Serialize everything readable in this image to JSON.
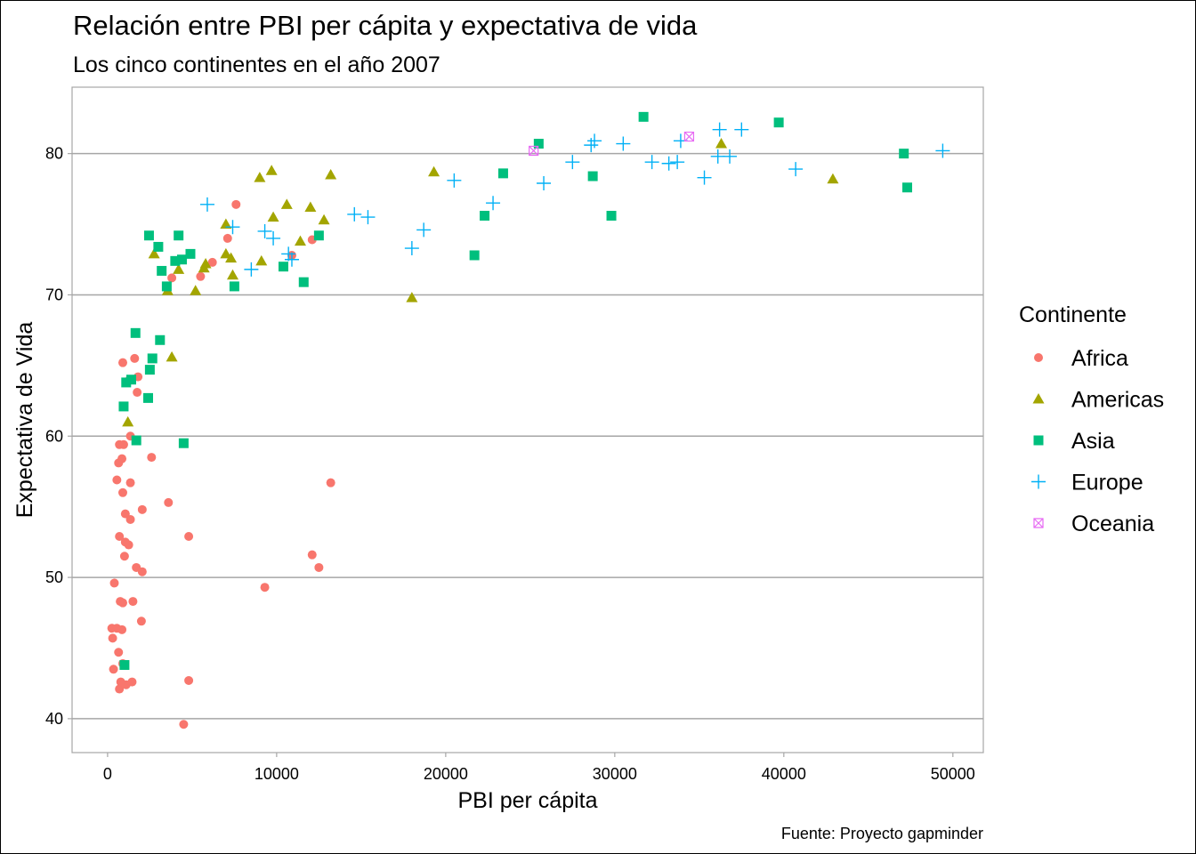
{
  "chart_data": {
    "type": "scatter",
    "title": "Relación entre PBI per cápita y expectativa de vida",
    "subtitle": "Los cinco continentes en el año 2007",
    "xlabel": "PBI per cápita",
    "ylabel": "Expectativa de Vida",
    "caption": "Fuente: Proyecto gapminder",
    "xlim": [
      -2100,
      51800
    ],
    "ylim": [
      37.6,
      84.7
    ],
    "x_ticks": [
      0,
      10000,
      20000,
      30000,
      40000,
      50000
    ],
    "x_tick_labels": [
      "0",
      "10000",
      "20000",
      "30000",
      "40000",
      "50000"
    ],
    "y_ticks": [
      40,
      50,
      60,
      70,
      80
    ],
    "y_tick_labels": [
      "40",
      "50",
      "60",
      "70",
      "80"
    ],
    "grid": "horizontal-major",
    "legend": {
      "title": "Continente",
      "position": "right"
    },
    "series": [
      {
        "name": "Africa",
        "color": "#F8766D",
        "shape": "circle",
        "points": [
          [
            700,
            42.1
          ],
          [
            780,
            42.6
          ],
          [
            1100,
            42.4
          ],
          [
            1450,
            42.6
          ],
          [
            4800,
            42.7
          ],
          [
            4500,
            39.6
          ],
          [
            900,
            43.9
          ],
          [
            350,
            43.5
          ],
          [
            300,
            45.7
          ],
          [
            250,
            46.4
          ],
          [
            550,
            46.4
          ],
          [
            850,
            46.3
          ],
          [
            2000,
            46.9
          ],
          [
            650,
            44.7
          ],
          [
            750,
            48.3
          ],
          [
            900,
            48.2
          ],
          [
            1500,
            48.3
          ],
          [
            400,
            49.6
          ],
          [
            9300,
            49.3
          ],
          [
            2050,
            50.4
          ],
          [
            1700,
            50.7
          ],
          [
            12500,
            50.7
          ],
          [
            12100,
            51.6
          ],
          [
            1000,
            51.5
          ],
          [
            1050,
            52.5
          ],
          [
            1250,
            52.3
          ],
          [
            700,
            52.9
          ],
          [
            4800,
            52.9
          ],
          [
            1050,
            54.5
          ],
          [
            1350,
            54.1
          ],
          [
            2050,
            54.8
          ],
          [
            3600,
            55.3
          ],
          [
            13200,
            56.7
          ],
          [
            900,
            56.0
          ],
          [
            550,
            56.9
          ],
          [
            1350,
            56.7
          ],
          [
            650,
            58.1
          ],
          [
            850,
            58.4
          ],
          [
            2600,
            58.5
          ],
          [
            700,
            59.4
          ],
          [
            950,
            59.4
          ],
          [
            1350,
            60.0
          ],
          [
            1750,
            63.1
          ],
          [
            1300,
            64.0
          ],
          [
            1800,
            64.2
          ],
          [
            900,
            65.2
          ],
          [
            1600,
            65.5
          ],
          [
            3800,
            71.2
          ],
          [
            5500,
            71.3
          ],
          [
            6200,
            72.3
          ],
          [
            7100,
            74.0
          ],
          [
            10900,
            72.8
          ],
          [
            12100,
            73.9
          ],
          [
            7600,
            76.4
          ]
        ]
      },
      {
        "name": "Americas",
        "color": "#A3A500",
        "shape": "triangle",
        "points": [
          [
            1200,
            61.0
          ],
          [
            3800,
            65.6
          ],
          [
            3550,
            70.3
          ],
          [
            5200,
            70.3
          ],
          [
            18000,
            69.8
          ],
          [
            7400,
            71.4
          ],
          [
            4200,
            71.8
          ],
          [
            5800,
            72.2
          ],
          [
            5700,
            71.9
          ],
          [
            7000,
            72.9
          ],
          [
            7300,
            72.6
          ],
          [
            9100,
            72.4
          ],
          [
            2750,
            72.9
          ],
          [
            11400,
            73.8
          ],
          [
            7000,
            75.0
          ],
          [
            9800,
            75.5
          ],
          [
            12000,
            76.2
          ],
          [
            12800,
            75.3
          ],
          [
            10600,
            76.4
          ],
          [
            9000,
            78.3
          ],
          [
            9700,
            78.8
          ],
          [
            13200,
            78.5
          ],
          [
            19300,
            78.7
          ],
          [
            42900,
            78.2
          ],
          [
            36300,
            80.7
          ]
        ]
      },
      {
        "name": "Asia",
        "color": "#00BF7D",
        "shape": "square",
        "points": [
          [
            1000,
            43.8
          ],
          [
            4500,
            59.5
          ],
          [
            1700,
            59.7
          ],
          [
            950,
            62.1
          ],
          [
            2400,
            62.7
          ],
          [
            1100,
            63.8
          ],
          [
            1400,
            64.0
          ],
          [
            2500,
            64.7
          ],
          [
            2650,
            65.5
          ],
          [
            3100,
            66.8
          ],
          [
            1650,
            67.3
          ],
          [
            3500,
            70.6
          ],
          [
            7500,
            70.6
          ],
          [
            11600,
            70.9
          ],
          [
            10400,
            72.0
          ],
          [
            3200,
            71.7
          ],
          [
            4000,
            72.4
          ],
          [
            4400,
            72.5
          ],
          [
            4900,
            72.9
          ],
          [
            3000,
            73.4
          ],
          [
            12500,
            74.2
          ],
          [
            4200,
            74.2
          ],
          [
            2450,
            74.2
          ],
          [
            21700,
            72.8
          ],
          [
            22300,
            75.6
          ],
          [
            29800,
            75.6
          ],
          [
            23400,
            78.6
          ],
          [
            28700,
            78.4
          ],
          [
            25500,
            80.7
          ],
          [
            31700,
            82.6
          ],
          [
            39700,
            82.2
          ],
          [
            47300,
            77.6
          ],
          [
            47100,
            80.0
          ]
        ]
      },
      {
        "name": "Europe",
        "color": "#00B0F6",
        "shape": "plus",
        "points": [
          [
            5900,
            76.4
          ],
          [
            7400,
            74.8
          ],
          [
            8500,
            71.8
          ],
          [
            9300,
            74.5
          ],
          [
            9800,
            74.0
          ],
          [
            10700,
            72.9
          ],
          [
            10900,
            72.5
          ],
          [
            14600,
            75.7
          ],
          [
            15400,
            75.5
          ],
          [
            18000,
            73.3
          ],
          [
            18700,
            74.6
          ],
          [
            20500,
            78.1
          ],
          [
            22800,
            76.5
          ],
          [
            25800,
            77.9
          ],
          [
            27500,
            79.4
          ],
          [
            28600,
            80.6
          ],
          [
            28800,
            80.9
          ],
          [
            30500,
            80.7
          ],
          [
            32200,
            79.4
          ],
          [
            33200,
            79.3
          ],
          [
            33700,
            79.4
          ],
          [
            33900,
            80.9
          ],
          [
            35300,
            78.3
          ],
          [
            36100,
            79.8
          ],
          [
            36200,
            81.7
          ],
          [
            36800,
            79.8
          ],
          [
            37500,
            81.7
          ],
          [
            40700,
            78.9
          ],
          [
            49400,
            80.2
          ]
        ]
      },
      {
        "name": "Oceania",
        "color": "#E76BF3",
        "shape": "square-cross",
        "points": [
          [
            25200,
            80.2
          ],
          [
            34400,
            81.2
          ]
        ]
      }
    ]
  }
}
